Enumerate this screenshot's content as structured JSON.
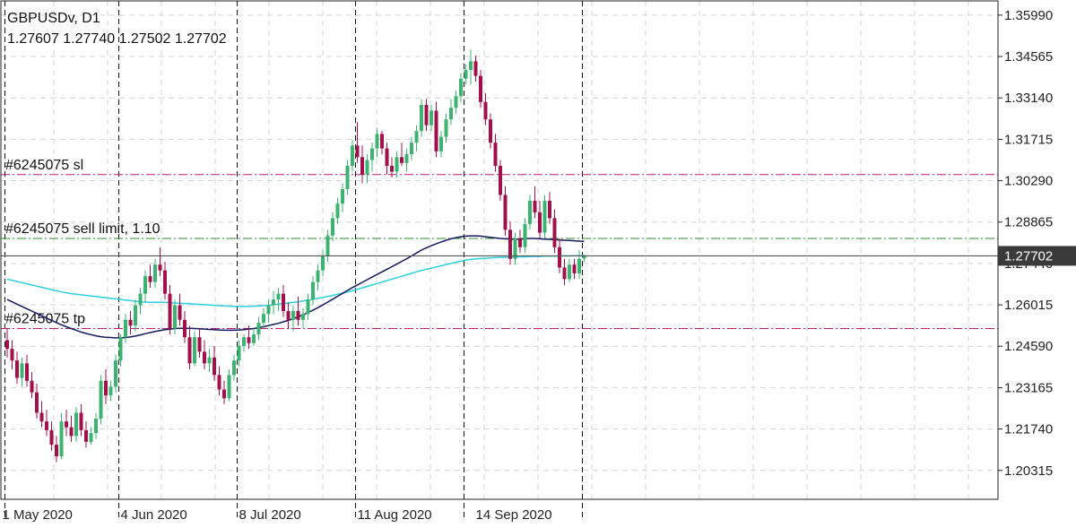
{
  "header": {
    "symbol": "GBPUSDv, D1",
    "ohlc": "1.27607 1.27740 1.27502 1.27702"
  },
  "orders": [
    {
      "label": "#6245075 sl",
      "price": 1.305,
      "color": "#c2187a",
      "style": "dashdot"
    },
    {
      "label": "#6245075 sell limit, 1.10",
      "price": 1.283,
      "color": "#2e8b2e",
      "style": "dashdot"
    },
    {
      "label": "#6245075 tp",
      "price": 1.252,
      "color": "#c2187a",
      "style": "dashdot"
    }
  ],
  "price_tag": {
    "value": "1.27702",
    "price": 1.27702,
    "bg": "#3a3a3a",
    "fg": "#ffffff"
  },
  "chart_data": {
    "type": "candlestick",
    "title": "GBPUSDv, D1",
    "ylim": [
      1.1932,
      1.3648
    ],
    "y_ticks": [
      "1.35990",
      "1.34565",
      "1.33140",
      "1.31715",
      "1.30290",
      "1.28865",
      "1.27440",
      "1.26015",
      "1.24590",
      "1.23165",
      "1.21740",
      "1.20315"
    ],
    "x_ticks": [
      "1 May 2020",
      "4 Jun 2020",
      "8 Jul 2020",
      "11 Aug 2020",
      "14 Sep 2020"
    ],
    "x_tick_index": [
      0,
      24,
      48,
      72,
      96
    ],
    "session_separator_index": [
      0,
      23,
      47,
      71,
      93,
      117
    ],
    "up_color": "#3cb371",
    "down_color": "#a0104a",
    "candles": [
      [
        1.248,
        1.252,
        1.242,
        1.245
      ],
      [
        1.245,
        1.248,
        1.238,
        1.241
      ],
      [
        1.241,
        1.244,
        1.233,
        1.235
      ],
      [
        1.235,
        1.242,
        1.232,
        1.24
      ],
      [
        1.24,
        1.243,
        1.232,
        1.234
      ],
      [
        1.234,
        1.237,
        1.228,
        1.23
      ],
      [
        1.23,
        1.233,
        1.221,
        1.223
      ],
      [
        1.223,
        1.227,
        1.218,
        1.22
      ],
      [
        1.22,
        1.224,
        1.215,
        1.217
      ],
      [
        1.217,
        1.22,
        1.21,
        1.212
      ],
      [
        1.212,
        1.215,
        1.206,
        1.208
      ],
      [
        1.208,
        1.223,
        1.207,
        1.22
      ],
      [
        1.22,
        1.224,
        1.215,
        1.218
      ],
      [
        1.218,
        1.222,
        1.213,
        1.215
      ],
      [
        1.215,
        1.225,
        1.213,
        1.223
      ],
      [
        1.223,
        1.226,
        1.215,
        1.217
      ],
      [
        1.217,
        1.22,
        1.211,
        1.213
      ],
      [
        1.213,
        1.218,
        1.212,
        1.216
      ],
      [
        1.216,
        1.223,
        1.214,
        1.221
      ],
      [
        1.221,
        1.236,
        1.219,
        1.234
      ],
      [
        1.234,
        1.238,
        1.226,
        1.229
      ],
      [
        1.229,
        1.234,
        1.227,
        1.232
      ],
      [
        1.232,
        1.243,
        1.23,
        1.241
      ],
      [
        1.241,
        1.25,
        1.239,
        1.249
      ],
      [
        1.249,
        1.257,
        1.247,
        1.255
      ],
      [
        1.255,
        1.258,
        1.25,
        1.253
      ],
      [
        1.253,
        1.262,
        1.251,
        1.26
      ],
      [
        1.26,
        1.266,
        1.257,
        1.264
      ],
      [
        1.264,
        1.272,
        1.261,
        1.27
      ],
      [
        1.27,
        1.274,
        1.266,
        1.268
      ],
      [
        1.268,
        1.276,
        1.266,
        1.274
      ],
      [
        1.274,
        1.28,
        1.27,
        1.272
      ],
      [
        1.272,
        1.275,
        1.262,
        1.264
      ],
      [
        1.264,
        1.267,
        1.25,
        1.252
      ],
      [
        1.252,
        1.262,
        1.25,
        1.26
      ],
      [
        1.26,
        1.264,
        1.253,
        1.255
      ],
      [
        1.255,
        1.258,
        1.247,
        1.249
      ],
      [
        1.249,
        1.253,
        1.238,
        1.24
      ],
      [
        1.24,
        1.251,
        1.239,
        1.249
      ],
      [
        1.249,
        1.252,
        1.242,
        1.244
      ],
      [
        1.244,
        1.248,
        1.238,
        1.24
      ],
      [
        1.24,
        1.245,
        1.237,
        1.242
      ],
      [
        1.242,
        1.246,
        1.234,
        1.236
      ],
      [
        1.236,
        1.239,
        1.229,
        1.231
      ],
      [
        1.231,
        1.234,
        1.226,
        1.228
      ],
      [
        1.228,
        1.238,
        1.227,
        1.236
      ],
      [
        1.236,
        1.243,
        1.234,
        1.241
      ],
      [
        1.241,
        1.248,
        1.239,
        1.246
      ],
      [
        1.246,
        1.25,
        1.244,
        1.249
      ],
      [
        1.249,
        1.253,
        1.245,
        1.247
      ],
      [
        1.247,
        1.252,
        1.246,
        1.25
      ],
      [
        1.25,
        1.256,
        1.248,
        1.254
      ],
      [
        1.254,
        1.259,
        1.252,
        1.257
      ],
      [
        1.257,
        1.262,
        1.254,
        1.26
      ],
      [
        1.26,
        1.265,
        1.257,
        1.262
      ],
      [
        1.262,
        1.266,
        1.258,
        1.264
      ],
      [
        1.264,
        1.267,
        1.256,
        1.258
      ],
      [
        1.258,
        1.261,
        1.252,
        1.255
      ],
      [
        1.255,
        1.26,
        1.251,
        1.258
      ],
      [
        1.258,
        1.263,
        1.253,
        1.255
      ],
      [
        1.255,
        1.259,
        1.252,
        1.257
      ],
      [
        1.257,
        1.264,
        1.255,
        1.262
      ],
      [
        1.262,
        1.27,
        1.26,
        1.268
      ],
      [
        1.268,
        1.274,
        1.265,
        1.272
      ],
      [
        1.272,
        1.279,
        1.27,
        1.277
      ],
      [
        1.277,
        1.286,
        1.275,
        1.284
      ],
      [
        1.284,
        1.292,
        1.282,
        1.29
      ],
      [
        1.29,
        1.297,
        1.288,
        1.295
      ],
      [
        1.295,
        1.302,
        1.292,
        1.3
      ],
      [
        1.3,
        1.31,
        1.298,
        1.308
      ],
      [
        1.308,
        1.317,
        1.306,
        1.315
      ],
      [
        1.315,
        1.323,
        1.309,
        1.311
      ],
      [
        1.311,
        1.315,
        1.302,
        1.305
      ],
      [
        1.305,
        1.312,
        1.302,
        1.31
      ],
      [
        1.31,
        1.316,
        1.306,
        1.314
      ],
      [
        1.314,
        1.321,
        1.311,
        1.319
      ],
      [
        1.319,
        1.32,
        1.312,
        1.314
      ],
      [
        1.314,
        1.316,
        1.305,
        1.308
      ],
      [
        1.308,
        1.311,
        1.304,
        1.306
      ],
      [
        1.306,
        1.313,
        1.304,
        1.311
      ],
      [
        1.311,
        1.316,
        1.308,
        1.309
      ],
      [
        1.309,
        1.314,
        1.306,
        1.312
      ],
      [
        1.312,
        1.318,
        1.31,
        1.316
      ],
      [
        1.316,
        1.322,
        1.313,
        1.32
      ],
      [
        1.32,
        1.331,
        1.318,
        1.329
      ],
      [
        1.329,
        1.331,
        1.32,
        1.322
      ],
      [
        1.322,
        1.329,
        1.32,
        1.327
      ],
      [
        1.327,
        1.33,
        1.311,
        1.313
      ],
      [
        1.313,
        1.32,
        1.311,
        1.318
      ],
      [
        1.318,
        1.326,
        1.316,
        1.324
      ],
      [
        1.324,
        1.331,
        1.322,
        1.328
      ],
      [
        1.328,
        1.334,
        1.326,
        1.332
      ],
      [
        1.332,
        1.34,
        1.33,
        1.338
      ],
      [
        1.338,
        1.343,
        1.336,
        1.341
      ],
      [
        1.341,
        1.348,
        1.336,
        1.344
      ],
      [
        1.344,
        1.346,
        1.337,
        1.339
      ],
      [
        1.339,
        1.341,
        1.328,
        1.33
      ],
      [
        1.33,
        1.333,
        1.322,
        1.324
      ],
      [
        1.324,
        1.326,
        1.314,
        1.316
      ],
      [
        1.316,
        1.319,
        1.306,
        1.308
      ],
      [
        1.308,
        1.31,
        1.296,
        1.298
      ],
      [
        1.298,
        1.301,
        1.284,
        1.286
      ],
      [
        1.286,
        1.289,
        1.274,
        1.276
      ],
      [
        1.276,
        1.285,
        1.274,
        1.283
      ],
      [
        1.283,
        1.286,
        1.278,
        1.28
      ],
      [
        1.28,
        1.29,
        1.278,
        1.288
      ],
      [
        1.288,
        1.298,
        1.286,
        1.296
      ],
      [
        1.296,
        1.301,
        1.29,
        1.292
      ],
      [
        1.292,
        1.296,
        1.283,
        1.285
      ],
      [
        1.285,
        1.298,
        1.283,
        1.296
      ],
      [
        1.296,
        1.299,
        1.288,
        1.29
      ],
      [
        1.29,
        1.293,
        1.278,
        1.28
      ],
      [
        1.28,
        1.283,
        1.271,
        1.273
      ],
      [
        1.273,
        1.276,
        1.267,
        1.269
      ],
      [
        1.269,
        1.276,
        1.268,
        1.274
      ],
      [
        1.274,
        1.276,
        1.269,
        1.271
      ],
      [
        1.271,
        1.279,
        1.269,
        1.276
      ],
      [
        1.27607,
        1.2774,
        1.27502,
        1.27702
      ]
    ],
    "series": [
      {
        "color": "#2ecfe0",
        "values": [
          1.269,
          1.2686,
          1.2682,
          1.2678,
          1.2674,
          1.267,
          1.2666,
          1.2662,
          1.2658,
          1.2654,
          1.265,
          1.2646,
          1.2643,
          1.264,
          1.2638,
          1.2636,
          1.2634,
          1.2632,
          1.263,
          1.2628,
          1.2626,
          1.2624,
          1.2622,
          1.262,
          1.2618,
          1.2616,
          1.2614,
          1.2612,
          1.2611,
          1.261,
          1.261,
          1.261,
          1.261,
          1.2609,
          1.2608,
          1.2607,
          1.2606,
          1.2605,
          1.2604,
          1.2603,
          1.2602,
          1.2601,
          1.26,
          1.2599,
          1.2598,
          1.2597,
          1.2596,
          1.2596,
          1.2596,
          1.2596,
          1.2597,
          1.2598,
          1.2599,
          1.26,
          1.2602,
          1.2604,
          1.2606,
          1.2608,
          1.261,
          1.2612,
          1.2615,
          1.2618,
          1.2621,
          1.2624,
          1.2627,
          1.263,
          1.2634,
          1.2638,
          1.2642,
          1.2646,
          1.265,
          1.2655,
          1.266,
          1.2665,
          1.267,
          1.2675,
          1.268,
          1.2685,
          1.269,
          1.2695,
          1.27,
          1.2705,
          1.271,
          1.2715,
          1.272,
          1.2724,
          1.2728,
          1.2732,
          1.2736,
          1.274,
          1.2744,
          1.2748,
          1.2752,
          1.2756,
          1.2758,
          1.276,
          1.2761,
          1.2762,
          1.2763,
          1.2764,
          1.2765,
          1.2765,
          1.2766,
          1.2766,
          1.2767,
          1.2767,
          1.2768,
          1.2768,
          1.2768,
          1.2769,
          1.2769,
          1.2769,
          1.277,
          1.277,
          1.277,
          1.2771,
          1.2771,
          1.2771
        ]
      },
      {
        "color": "#141a5e",
        "values": [
          1.262,
          1.2612,
          1.2604,
          1.2596,
          1.2588,
          1.258,
          1.2572,
          1.2564,
          1.2556,
          1.2548,
          1.254,
          1.2533,
          1.2526,
          1.252,
          1.2514,
          1.2508,
          1.2503,
          1.2499,
          1.2495,
          1.2492,
          1.249,
          1.2489,
          1.2488,
          1.2488,
          1.2489,
          1.2491,
          1.2494,
          1.2498,
          1.2502,
          1.2506,
          1.251,
          1.2513,
          1.2516,
          1.2518,
          1.252,
          1.2521,
          1.2521,
          1.2521,
          1.252,
          1.2519,
          1.2518,
          1.2517,
          1.2516,
          1.2515,
          1.2514,
          1.2514,
          1.2514,
          1.2515,
          1.2516,
          1.2518,
          1.252,
          1.2523,
          1.2526,
          1.253,
          1.2534,
          1.2538,
          1.2543,
          1.2548,
          1.2554,
          1.256,
          1.2567,
          1.2575,
          1.2583,
          1.2592,
          1.2601,
          1.2611,
          1.2621,
          1.2631,
          1.2641,
          1.2651,
          1.2661,
          1.267,
          1.2679,
          1.2688,
          1.2697,
          1.2706,
          1.2715,
          1.2724,
          1.2733,
          1.2742,
          1.2751,
          1.276,
          1.277,
          1.278,
          1.279,
          1.2798,
          1.2805,
          1.2812,
          1.2818,
          1.2824,
          1.2829,
          1.2833,
          1.2836,
          1.2838,
          1.2839,
          1.2839,
          1.2838,
          1.2836,
          1.2834,
          1.2832,
          1.283,
          1.2829,
          1.2828,
          1.2828,
          1.2828,
          1.2829,
          1.283,
          1.283,
          1.2829,
          1.2828,
          1.2827,
          1.2826,
          1.2825,
          1.2824,
          1.2823,
          1.2822,
          1.2821,
          1.282
        ]
      }
    ],
    "grid": true,
    "last_price": 1.27702
  }
}
